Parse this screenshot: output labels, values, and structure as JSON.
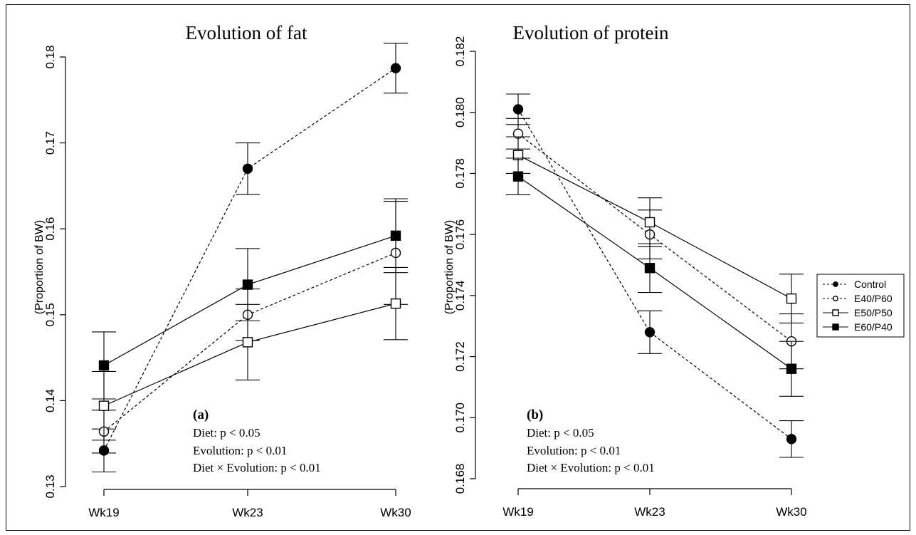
{
  "legend": {
    "placement": "right",
    "entries": [
      "Control",
      "E40/P60",
      "E50/P50",
      "E60/P40"
    ]
  },
  "chart_data": [
    {
      "type": "line",
      "panel_label": "(a)",
      "title": "Evolution of fat",
      "ylabel": "(Proportion of BW)",
      "xlabel": "",
      "categories": [
        "Wk19",
        "Wk23",
        "Wk30"
      ],
      "ylim": [
        0.13,
        0.18
      ],
      "yticks": [
        "0.13",
        "0.14",
        "0.15",
        "0.16",
        "0.17",
        "0.18"
      ],
      "annotations": [
        "Diet: p < 0.05",
        "Evolution: p < 0.01",
        "Diet × Evolution: p < 0.01"
      ],
      "series": [
        {
          "name": "Control",
          "values": [
            0.1342,
            0.167,
            0.1787
          ],
          "err": [
            0.0025,
            0.003,
            0.0029
          ]
        },
        {
          "name": "E40/P60",
          "values": [
            0.1364,
            0.15,
            0.1572
          ],
          "err": [
            0.0025,
            0.003,
            0.006
          ]
        },
        {
          "name": "E50/P50",
          "values": [
            0.1394,
            0.1468,
            0.1513
          ],
          "err": [
            0.004,
            0.0044,
            0.0042
          ]
        },
        {
          "name": "E60/P40",
          "values": [
            0.1441,
            0.1535,
            0.1592
          ],
          "err": [
            0.0039,
            0.0042,
            0.0043
          ]
        }
      ]
    },
    {
      "type": "line",
      "panel_label": "(b)",
      "title": "Evolution of protein",
      "ylabel": "(Proportion of BW)",
      "xlabel": "",
      "categories": [
        "Wk19",
        "Wk23",
        "Wk30"
      ],
      "ylim": [
        0.168,
        0.182
      ],
      "yticks": [
        "0.168",
        "0.170",
        "0.172",
        "0.174",
        "0.176",
        "0.178",
        "0.180",
        "0.182"
      ],
      "annotations": [
        "Diet: p < 0.05",
        "Evolution: p < 0.01",
        "Diet × Evolution:  p < 0.01"
      ],
      "series": [
        {
          "name": "Control",
          "values": [
            0.1801,
            0.1728,
            0.1693
          ],
          "err": [
            0.0005,
            0.0007,
            0.0006
          ]
        },
        {
          "name": "E40/P60",
          "values": [
            0.1793,
            0.176,
            0.1725
          ],
          "err": [
            0.0005,
            0.0008,
            0.0009
          ]
        },
        {
          "name": "E50/P50",
          "values": [
            0.1786,
            0.1764,
            0.1739
          ],
          "err": [
            0.0006,
            0.0008,
            0.0008
          ]
        },
        {
          "name": "E60/P40",
          "values": [
            0.1779,
            0.1749,
            0.1716
          ],
          "err": [
            0.0006,
            0.0008,
            0.0009
          ]
        }
      ]
    }
  ]
}
